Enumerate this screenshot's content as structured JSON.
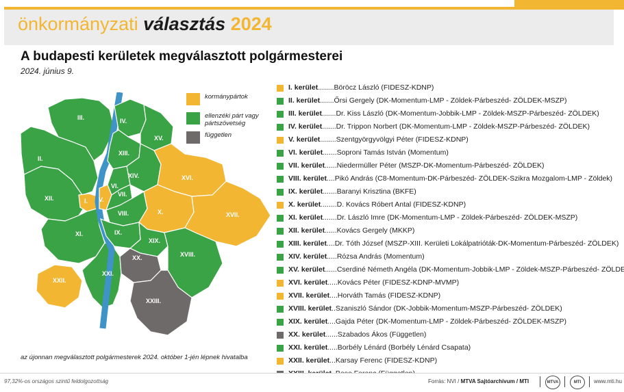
{
  "banner": {
    "light": "önkormányzati",
    "dark": "választás",
    "year": "2024"
  },
  "headline": "A budapesti kerületek megválasztott polgármesterei",
  "date": "2024. június 9.",
  "colors": {
    "kormanypartok": "#f2b632",
    "ellenzeki": "#3aa346",
    "fuggetlen": "#6f6a6a",
    "river": "#3f93c6"
  },
  "legend": [
    {
      "label": "kormánypártok",
      "color": "#f2b632"
    },
    {
      "label": "ellenzéki párt vagy pártszövetség",
      "color": "#3aa346"
    },
    {
      "label": "független",
      "color": "#6f6a6a"
    }
  ],
  "districts": [
    {
      "k": "I. kerület",
      "dots": "........",
      "name": "Böröcz László (FIDESZ-KDNP)",
      "color": "#f2b632"
    },
    {
      "k": "II. kerület",
      "dots": ".......",
      "name": "Őrsi Gergely (DK-Momentum-LMP - Zöldek-Párbeszéd- ZÖLDEK-MSZP)",
      "color": "#3aa346"
    },
    {
      "k": "III. kerület",
      "dots": ".......",
      "name": "Dr. Kiss László (DK-Momentum-Jobbik-LMP - Zöldek-MSZP-Párbeszéd- ZÖLDEK)",
      "color": "#3aa346"
    },
    {
      "k": "IV. kerület",
      "dots": ".......",
      "name": "Dr. Trippon Norbert (DK-Momentum-LMP - Zöldek-MSZP-Párbeszéd- ZÖLDEK)",
      "color": "#3aa346"
    },
    {
      "k": "V. kerület",
      "dots": "........",
      "name": "Szentgyörgyvölgyi Péter (FIDESZ-KDNP)",
      "color": "#f2b632"
    },
    {
      "k": "VI. kerület",
      "dots": ".......",
      "name": "Soproni Tamás István (Momentum)",
      "color": "#3aa346"
    },
    {
      "k": "VII. kerület",
      "dots": "......",
      "name": "Niedermüller Péter (MSZP-DK-Momentum-Párbeszéd- ZÖLDEK)",
      "color": "#3aa346"
    },
    {
      "k": "VIII. kerület",
      "dots": "....",
      "name": "Pikó András (C8-Momentum-DK-Párbeszéd- ZÖLDEK-Szikra Mozgalom-LMP - Zöldek)",
      "color": "#3aa346"
    },
    {
      "k": "IX. kerület",
      "dots": ".......",
      "name": "Baranyi Krisztina (BKFE)",
      "color": "#3aa346"
    },
    {
      "k": "X. kerület",
      "dots": "........",
      "name": "D. Kovács Róbert Antal (FIDESZ-KDNP)",
      "color": "#f2b632"
    },
    {
      "k": "XI. kerület",
      "dots": ".......",
      "name": "Dr. László Imre (DK-Momentum-LMP - Zöldek-Párbeszéd- ZÖLDEK-MSZP)",
      "color": "#3aa346"
    },
    {
      "k": "XII. kerület",
      "dots": "......",
      "name": "Kovács Gergely (MKKP)",
      "color": "#3aa346"
    },
    {
      "k": "XIII. kerület",
      "dots": "....",
      "name": "Dr. Tóth József (MSZP-XIII. Kerületi Lokálpatrióták-DK-Momentum-Párbeszéd- ZÖLDEK)",
      "color": "#3aa346"
    },
    {
      "k": "XIV. kerület",
      "dots": ".....",
      "name": "Rózsa András (Momentum)",
      "color": "#3aa346"
    },
    {
      "k": "XV. kerület",
      "dots": "......",
      "name": "Cserdiné Németh Angéla (DK-Momentum-Jobbik-LMP - Zöldek-MSZP-Párbeszéd- ZÖLDEK)",
      "color": "#3aa346"
    },
    {
      "k": "XVI. kerület",
      "dots": ".....",
      "name": "Kovács Péter (FIDESZ-KDNP-MVMP)",
      "color": "#f2b632"
    },
    {
      "k": "XVII. kerület",
      "dots": "....",
      "name": "Horváth Tamás (FIDESZ-KDNP)",
      "color": "#f2b632"
    },
    {
      "k": "XVIII. kerület",
      "dots": "..",
      "name": "Szaniszló Sándor (DK-Jobbik-Momentum-MSZP-Párbeszéd- ZÖLDEK)",
      "color": "#3aa346"
    },
    {
      "k": "XIX. kerület",
      "dots": "....",
      "name": "Gajda Péter (DK-Momentum-LMP - Zöldek-Párbeszéd- ZÖLDEK-MSZP)",
      "color": "#3aa346"
    },
    {
      "k": "XX. kerület",
      "dots": "......",
      "name": "Szabados Ákos (Független)",
      "color": "#6f6a6a"
    },
    {
      "k": "XXI. kerület",
      "dots": ".....",
      "name": "Borbély Lénárd (Borbély Lénárd Csapata)",
      "color": "#3aa346"
    },
    {
      "k": "XXII. kerület",
      "dots": "...",
      "name": "Karsay Ferenc (FIDESZ-KDNP)",
      "color": "#f2b632"
    },
    {
      "k": "XXIII. kerület",
      "dots": "..",
      "name": "Bese Ferenc (Független)",
      "color": "#6f6a6a"
    }
  ],
  "map_labels": [
    "I.",
    "II.",
    "III.",
    "IV.",
    "V.",
    "VI.",
    "VII.",
    "VIII.",
    "IX.",
    "X.",
    "XI.",
    "XII.",
    "XIII.",
    "XIV.",
    "XV.",
    "XVI.",
    "XVII.",
    "XVIII.",
    "XIX.",
    "XX.",
    "XXI.",
    "XXII.",
    "XXIII."
  ],
  "note": "az újonnan megválasztott polgármesterek 2024. október 1-jén lépnek hivatalba",
  "footer": {
    "processed": "97,32%-os országos szintű feldolgozottság",
    "source_prefix": "Forrás: NVI / ",
    "source_bold": "MTVA Sajtóarchívum / MTI",
    "icon1": "MTVA",
    "icon2": "MTI",
    "url": "www.mti.hu"
  }
}
